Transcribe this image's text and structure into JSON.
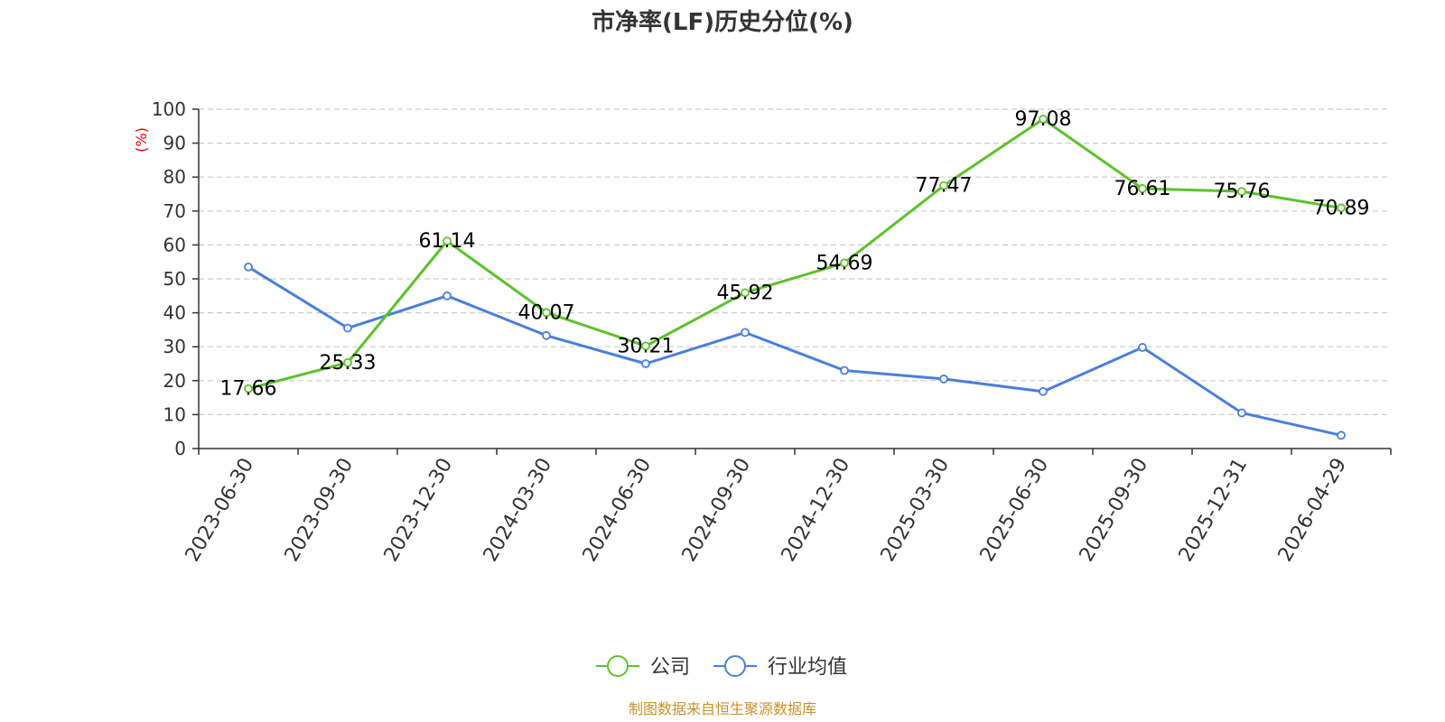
{
  "chart_data": {
    "type": "line",
    "title": "市净率(LF)历史分位(%)",
    "ylabel": "(%)",
    "ylim": [
      0,
      100
    ],
    "yticks": [
      0,
      10,
      20,
      30,
      40,
      50,
      60,
      70,
      80,
      90,
      100
    ],
    "grid": true,
    "legend_position": "bottom",
    "categories": [
      "2023-06-30",
      "2023-09-30",
      "2023-12-30",
      "2024-03-30",
      "2024-06-30",
      "2024-09-30",
      "2024-12-30",
      "2025-03-30",
      "2025-06-30",
      "2025-09-30",
      "2025-12-31",
      "2026-04-29"
    ],
    "series": [
      {
        "name": "公司",
        "color": "#5cc22a",
        "values": [
          17.66,
          25.33,
          61.14,
          40.07,
          30.21,
          45.92,
          54.69,
          77.47,
          97.08,
          76.61,
          75.76,
          70.89
        ],
        "labels": [
          "17.66",
          "25.33",
          "61.14",
          "40.07",
          "30.21",
          "45.92",
          "54.69",
          "77.47",
          "97.08",
          "76.61",
          "75.76",
          "70.89"
        ]
      },
      {
        "name": "行业均值",
        "color": "#4a7fdc",
        "values": [
          53.5,
          35.5,
          45.0,
          33.3,
          25.0,
          34.2,
          23.0,
          20.5,
          16.8,
          29.8,
          10.5,
          3.9
        ]
      }
    ],
    "source": "制图数据来自恒生聚源数据库",
    "source_color": "#c8922a",
    "ylabel_color": "#e00000"
  }
}
